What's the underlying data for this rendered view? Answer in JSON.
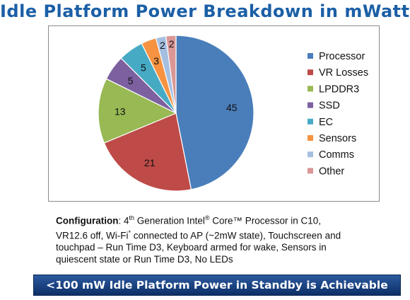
{
  "page": {
    "title": "Idle Platform Power Breakdown in mWatts"
  },
  "chart_data": {
    "type": "pie",
    "title": "Idle Platform Power Breakdown in mWatts",
    "categories": [
      "Processor",
      "VR Losses",
      "LPDDR3",
      "SSD",
      "EC",
      "Sensors",
      "Comms",
      "Other"
    ],
    "values": [
      45,
      21,
      13,
      5,
      5,
      3,
      2,
      2
    ],
    "colors": [
      "#4a7ebb",
      "#be4b48",
      "#98b954",
      "#7d60a0",
      "#46aac5",
      "#f69240",
      "#a5bfe0",
      "#d99795"
    ],
    "data_labels": [
      "45",
      "21",
      "13",
      "5",
      "5",
      "3",
      "2",
      "2"
    ],
    "legend_position": "right"
  },
  "configuration": {
    "label": "Configuration",
    "line1_pre": ": 4",
    "line1_sup1": "th",
    "line1_mid": " Generation Intel",
    "line1_sup2": "®",
    "line1_post": " Core™ Processor  in C10,",
    "line2_pre": "VR12.6 off,  Wi-Fi",
    "line2_sup": "*",
    "line2_post": " connected to AP (~2mW state), Touchscreen and",
    "line3": "touchpad – Run Time D3, Keyboard armed for wake, Sensors in",
    "line4": "quiescent state or Run Time D3, No LEDs"
  },
  "banner": {
    "text": "<100 mW Idle Platform Power in Standby is Achievable"
  }
}
